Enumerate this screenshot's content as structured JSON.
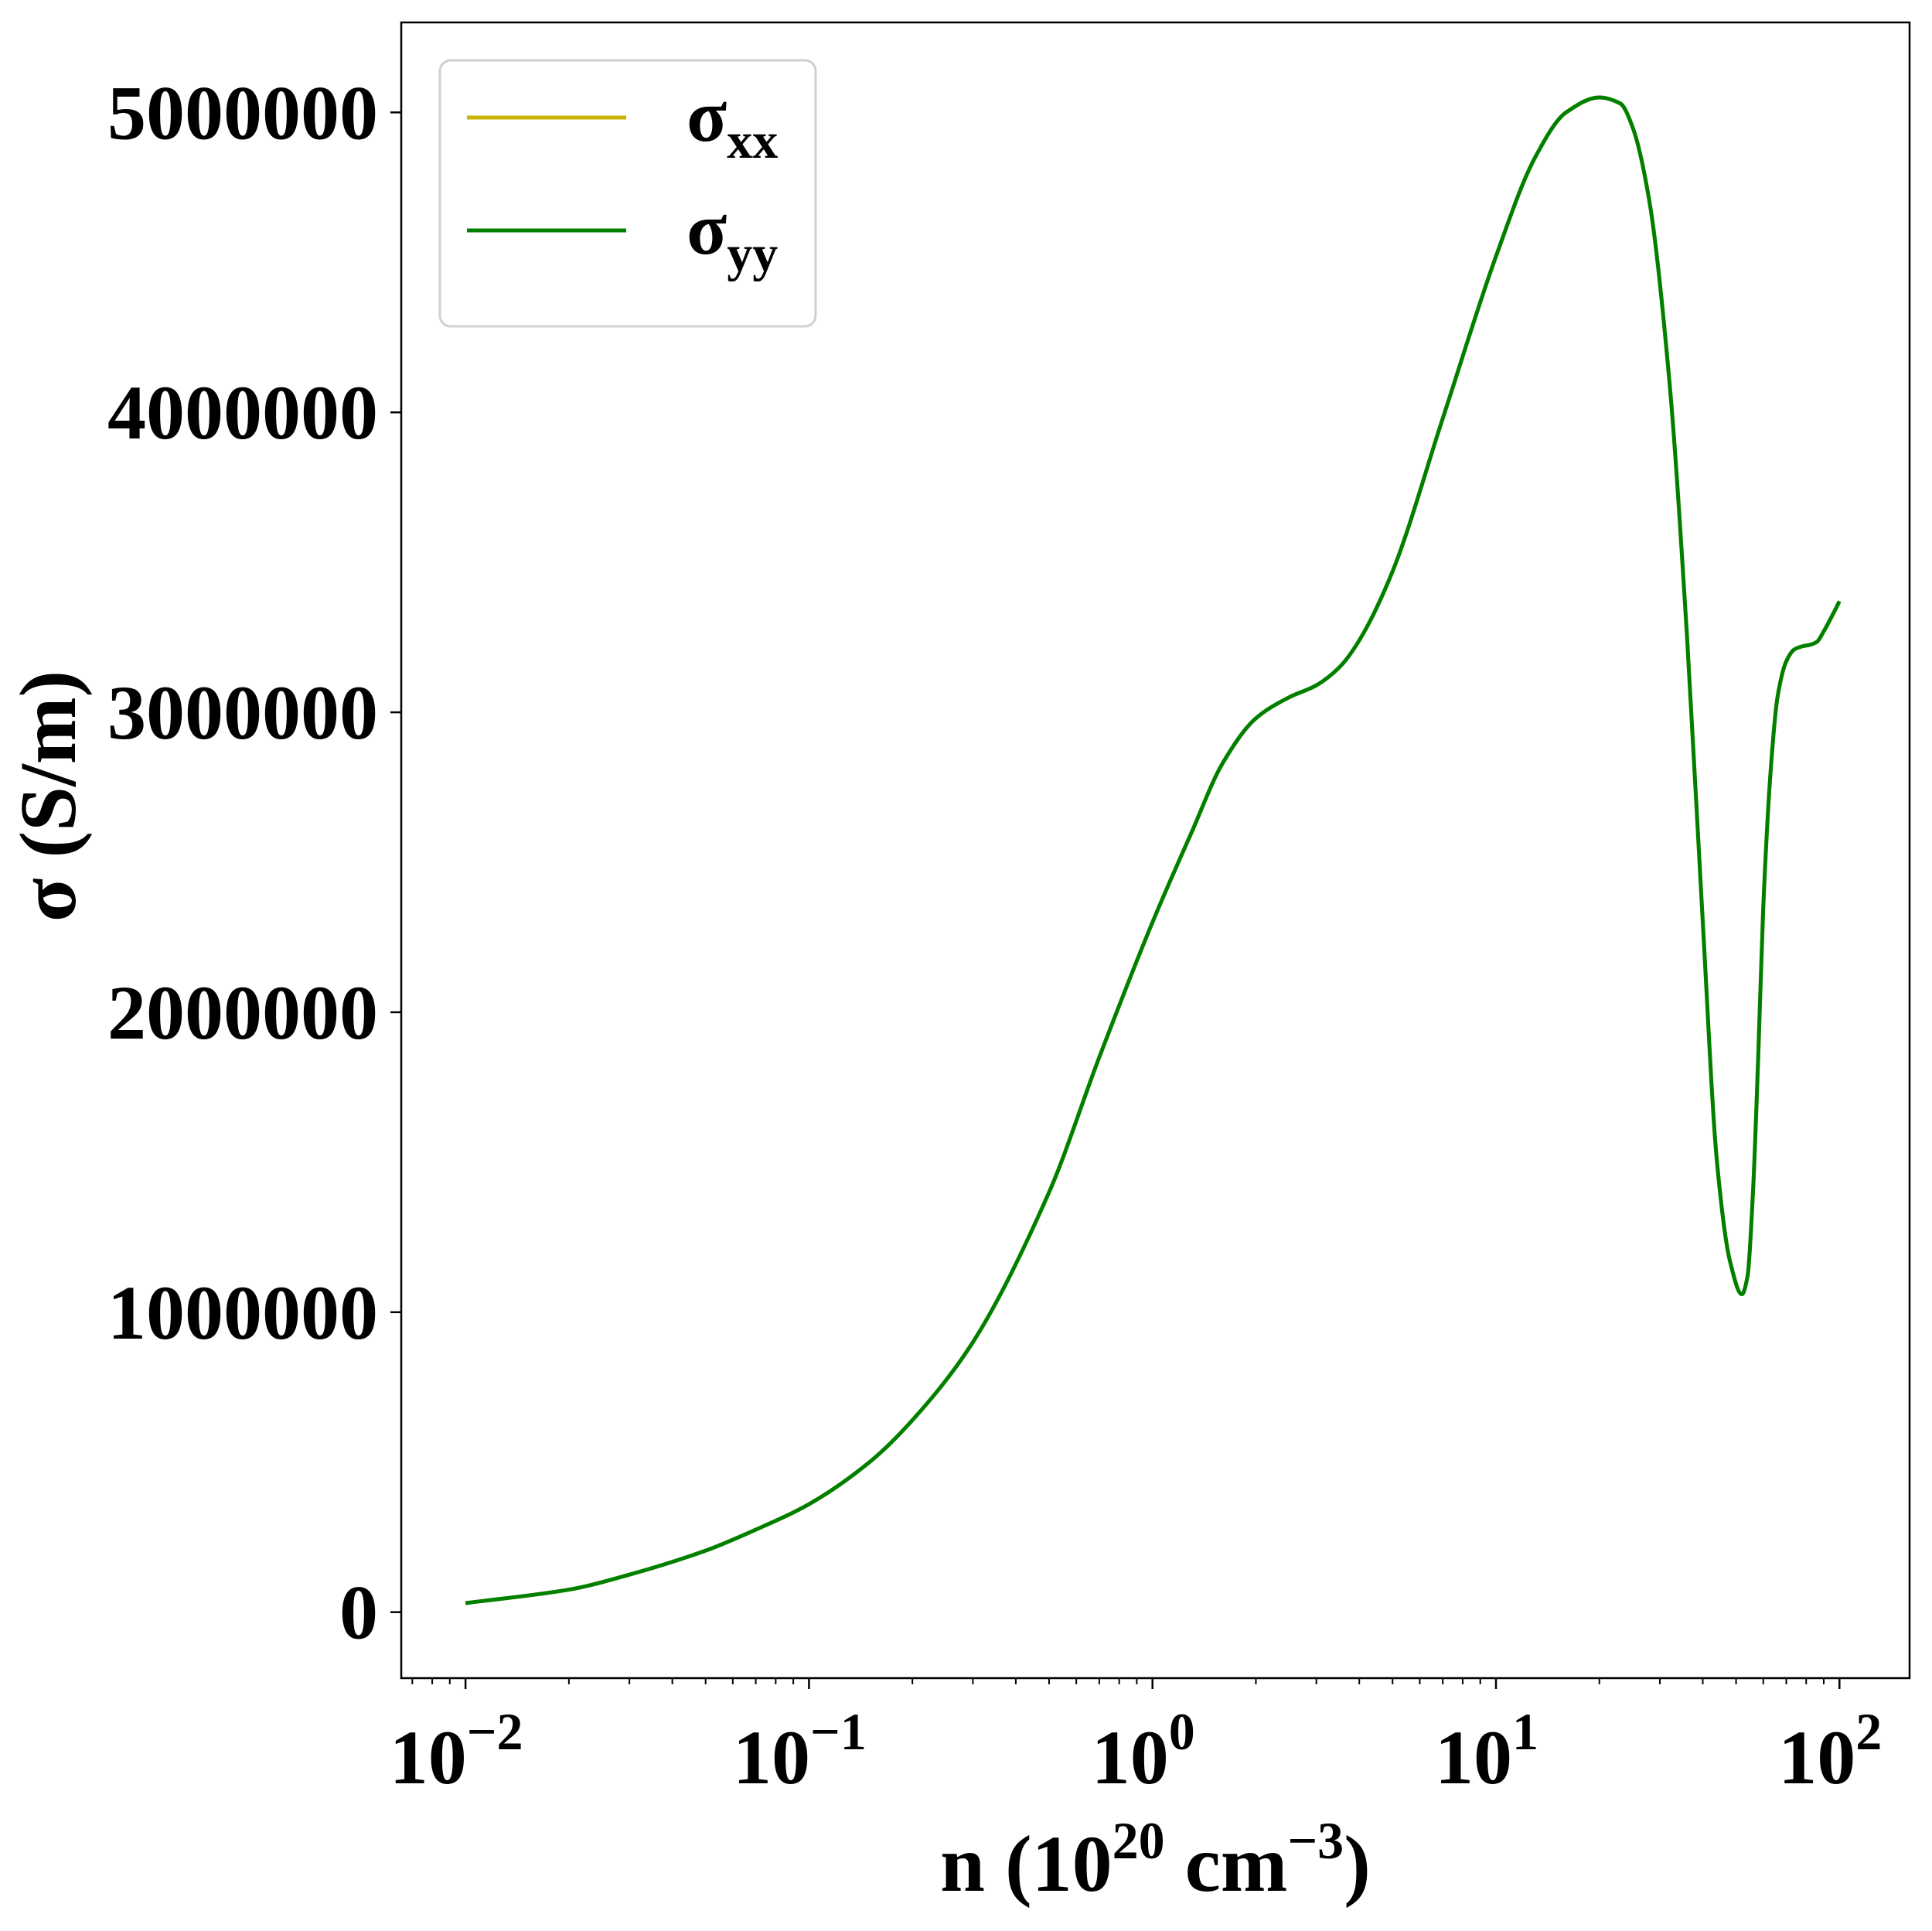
{
  "chart_data": {
    "type": "line",
    "xlabel": {
      "base": "n (10",
      "exp1": "20",
      "mid": " cm",
      "exp2": "−3",
      "end": ")"
    },
    "ylabel": "σ (S/m)",
    "x_scale": "log",
    "xlim": [
      0.0065,
      160
    ],
    "ylim": [
      -220000,
      5300000
    ],
    "grid": false,
    "legend_position": "top-left",
    "x_ticks": [
      {
        "base": "10",
        "exp": "−2",
        "value": 0.01
      },
      {
        "base": "10",
        "exp": "−1",
        "value": 0.1
      },
      {
        "base": "10",
        "exp": "0",
        "value": 1
      },
      {
        "base": "10",
        "exp": "1",
        "value": 10
      },
      {
        "base": "10",
        "exp": "2",
        "value": 100
      }
    ],
    "y_ticks": [
      {
        "label": "0",
        "value": 0
      },
      {
        "label": "1000000",
        "value": 1000000
      },
      {
        "label": "2000000",
        "value": 2000000
      },
      {
        "label": "3000000",
        "value": 3000000
      },
      {
        "label": "4000000",
        "value": 4000000
      },
      {
        "label": "5000000",
        "value": 5000000
      }
    ],
    "series": [
      {
        "name": "σxx",
        "legend_main": "σ",
        "legend_sub": "xx",
        "color": "#c8b400",
        "x": [
          0.01,
          0.02,
          0.03,
          0.05,
          0.07,
          0.1,
          0.15,
          0.2,
          0.3,
          0.5,
          0.7,
          1.0,
          1.3,
          1.6,
          2.0,
          2.5,
          3.0,
          3.5,
          4.0,
          5.0,
          7.0,
          10,
          13,
          16,
          20,
          23,
          25,
          28,
          32,
          36,
          40,
          44,
          48,
          52,
          54,
          56,
          58,
          60,
          63,
          66,
          70,
          74,
          78,
          82,
          86,
          90,
          95,
          100
        ],
        "y": [
          30000,
          75000,
          125000,
          205000,
          275000,
          360000,
          500000,
          640000,
          900000,
          1400000,
          1850000,
          2300000,
          2600000,
          2830000,
          2980000,
          3050000,
          3090000,
          3150000,
          3240000,
          3470000,
          3980000,
          4520000,
          4850000,
          5000000,
          5050000,
          5030000,
          4950000,
          4700000,
          4100000,
          3250000,
          2300000,
          1500000,
          1170000,
          1060000,
          1120000,
          1400000,
          1850000,
          2350000,
          2800000,
          3050000,
          3170000,
          3210000,
          3220000,
          3225000,
          3235000,
          3270000,
          3320000,
          3370000
        ]
      },
      {
        "name": "σyy",
        "legend_main": "σ",
        "legend_sub": "yy",
        "color": "#008000",
        "x": [
          0.01,
          0.02,
          0.03,
          0.05,
          0.07,
          0.1,
          0.15,
          0.2,
          0.3,
          0.5,
          0.7,
          1.0,
          1.3,
          1.6,
          2.0,
          2.5,
          3.0,
          3.5,
          4.0,
          5.0,
          7.0,
          10,
          13,
          16,
          20,
          23,
          25,
          28,
          32,
          36,
          40,
          44,
          48,
          52,
          54,
          56,
          58,
          60,
          63,
          66,
          70,
          74,
          78,
          82,
          86,
          90,
          95,
          100
        ],
        "y": [
          30000,
          75000,
          125000,
          205000,
          275000,
          360000,
          500000,
          640000,
          900000,
          1400000,
          1850000,
          2300000,
          2600000,
          2830000,
          2980000,
          3050000,
          3090000,
          3150000,
          3240000,
          3470000,
          3980000,
          4520000,
          4850000,
          5000000,
          5050000,
          5030000,
          4950000,
          4700000,
          4100000,
          3250000,
          2300000,
          1500000,
          1170000,
          1060000,
          1120000,
          1400000,
          1850000,
          2350000,
          2800000,
          3050000,
          3170000,
          3210000,
          3220000,
          3225000,
          3235000,
          3270000,
          3320000,
          3370000
        ]
      }
    ]
  }
}
